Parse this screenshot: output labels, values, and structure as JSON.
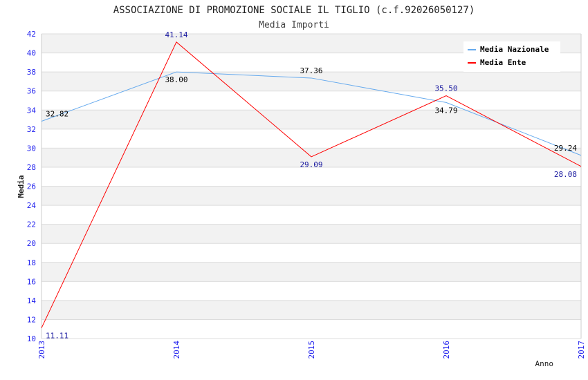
{
  "chart_data": {
    "type": "line",
    "title": "ASSOCIAZIONE DI PROMOZIONE SOCIALE IL TIGLIO (c.f.92026050127)",
    "subtitle": "Media Importi",
    "xlabel": "Anno",
    "ylabel": "Media",
    "ylim": [
      10,
      42
    ],
    "yticks": [
      "10",
      "12",
      "14",
      "16",
      "18",
      "20",
      "22",
      "24",
      "26",
      "28",
      "30",
      "32",
      "34",
      "36",
      "38",
      "40",
      "42"
    ],
    "categories": [
      "2013",
      "2014",
      "2015",
      "2016",
      "2017"
    ],
    "legend_position": "top-right",
    "grid": true,
    "series": [
      {
        "name": "Media Nazionale",
        "color": "#66aaee",
        "label_color": "#000000",
        "values": [
          32.82,
          38.0,
          37.36,
          34.79,
          29.24
        ],
        "labels": [
          "32.82",
          "38.00",
          "37.36",
          "34.79",
          "29.24"
        ]
      },
      {
        "name": "Media Ente",
        "color": "#ff0000",
        "label_color": "#1a1aa0",
        "values": [
          11.11,
          41.14,
          29.09,
          35.5,
          28.08
        ],
        "labels": [
          "11.11",
          "41.14",
          "29.09",
          "35.50",
          "28.08"
        ]
      }
    ]
  }
}
